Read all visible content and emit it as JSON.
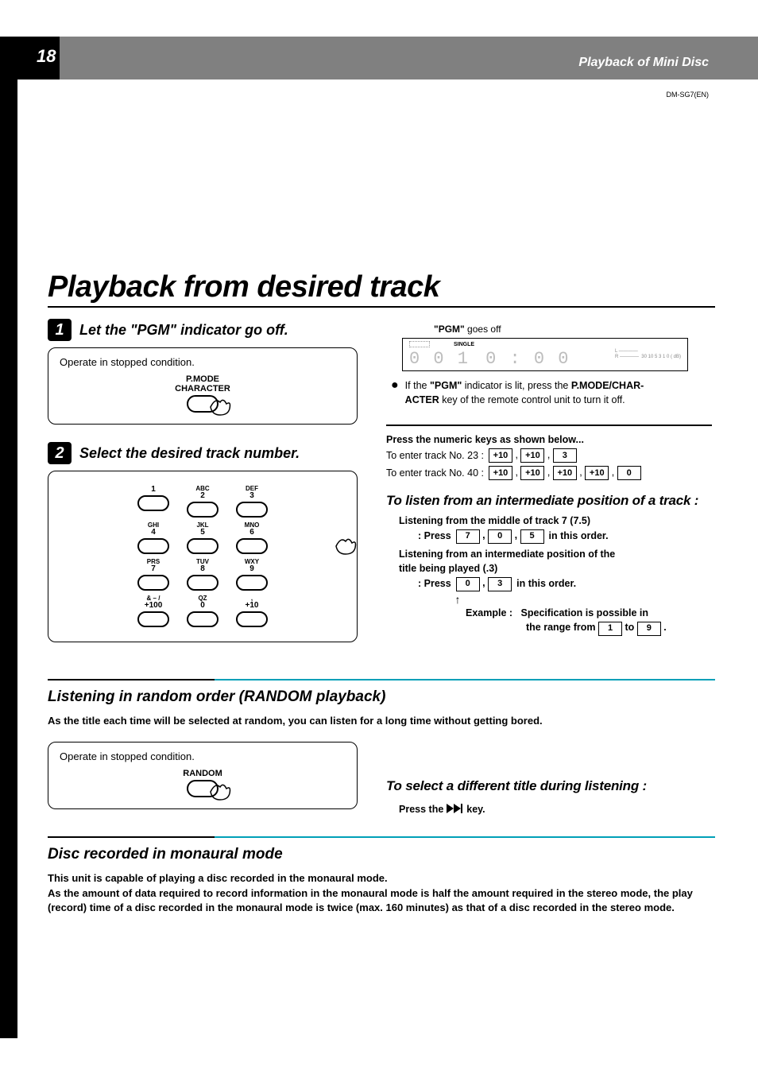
{
  "page_number": "18",
  "section_header": "Playback of Mini Disc",
  "doc_id": "DM-SG7(EN)",
  "h1": "Playback from desired track",
  "step1": {
    "num": "1",
    "text": "Let the \"PGM\" indicator go off.",
    "box_text": "Operate in stopped condition.",
    "btn_label_1": "P.MODE",
    "btn_label_2": "CHARACTER"
  },
  "step2": {
    "num": "2",
    "text": "Select the desired track number."
  },
  "keypad": [
    {
      "top": "",
      "num": "1"
    },
    {
      "top": "ABC",
      "num": "2"
    },
    {
      "top": "DEF",
      "num": "3"
    },
    {
      "top": "GHI",
      "num": "4"
    },
    {
      "top": "JKL",
      "num": "5"
    },
    {
      "top": "MNO",
      "num": "6"
    },
    {
      "top": "PRS",
      "num": "7"
    },
    {
      "top": "TUV",
      "num": "8"
    },
    {
      "top": "WXY",
      "num": "9"
    },
    {
      "top": "&   – /",
      "num": "+100"
    },
    {
      "top": "QZ",
      "num": "0"
    },
    {
      "top": ",",
      "num": "+10"
    }
  ],
  "pgm_off": {
    "label_prefix": "\"PGM\"",
    "label_rest": " goes off",
    "single": "SINGLE",
    "track": "0 0 1",
    "time": "0 : 0 0",
    "meter": "L ————\nR ————  30 10 5 3 1 0 ( dB)"
  },
  "bullet": {
    "p1a": "If the ",
    "p1b": "\"PGM\"",
    "p1c": " indicator is lit, press the ",
    "p1d": "P.MODE/CHAR-",
    "p2a": "ACTER",
    "p2b": " key of the remote control unit to turn it off."
  },
  "numeric_header": "Press the numeric keys as shown below...",
  "enter23_label": "To enter track No. 23 :",
  "enter23_keys": [
    "+10",
    "+10",
    "3"
  ],
  "enter40_label": "To enter track No. 40 :",
  "enter40_keys": [
    "+10",
    "+10",
    "+10",
    "+10",
    "0"
  ],
  "intermediate_h": "To listen from an intermediate position of a track :",
  "int_l1": "Listening from the middle of track 7 (7.5)",
  "int_l2_prefix": ": Press  ",
  "int_l2_keys": [
    "7",
    "0",
    "5"
  ],
  "int_l2_suffix": "  in this order.",
  "int_l3": "Listening from an intermediate position of the",
  "int_l3b": "title being played (.3)",
  "int_l4_prefix": ": Press  ",
  "int_l4_keys": [
    "0",
    "3"
  ],
  "int_l4_suffix": "  in this order.",
  "int_arrow": "↑",
  "int_ex_prefix": "Example :",
  "int_ex_l1": "Specification is possible in",
  "int_ex_l2a": "the range from ",
  "int_ex_k1": "1",
  "int_ex_mid": " to ",
  "int_ex_k2": "9",
  "int_ex_end": " .",
  "random_h": "Listening in random order (RANDOM playback)",
  "random_p": "As the title each time will be selected at random, you can listen for a long time without getting bored.",
  "random_box_text": "Operate in stopped condition.",
  "random_btn": "RANDOM",
  "select_diff_h": "To select a different title during listening :",
  "select_diff_line_a": "Press the ",
  "select_diff_line_b": " key.",
  "monaural_h": "Disc recorded in monaural mode",
  "monaural_p1": "This unit is capable of playing a disc recorded in the monaural mode.",
  "monaural_p2": "As the amount of data required to record information in the monaural mode is half the amount required in the stereo mode, the play (record) time of a disc recorded in the monaural mode is twice (max. 160 minutes) as that of a disc recorded in the stereo mode.",
  "colors": {
    "accent": "#00a0b8",
    "grey": "#808080"
  }
}
